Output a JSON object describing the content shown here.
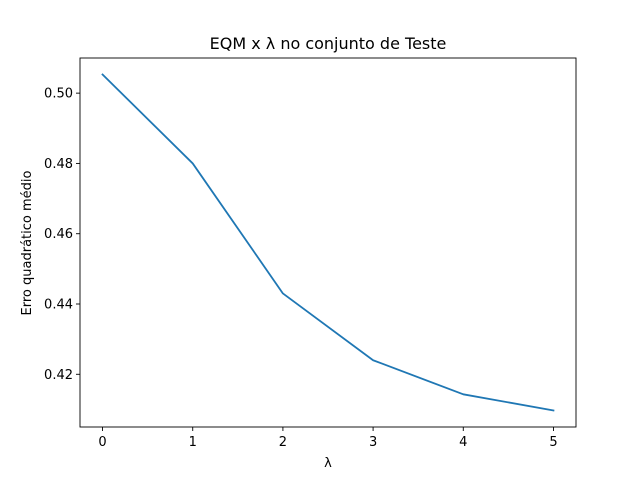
{
  "chart_data": {
    "type": "line",
    "title": "EQM x λ no conjunto de Teste",
    "xlabel": "λ",
    "ylabel": "Erro quadrático médio",
    "x": [
      0,
      1,
      2,
      3,
      4,
      5
    ],
    "series": [
      {
        "values": [
          0.5053,
          0.48,
          0.443,
          0.424,
          0.4143,
          0.4097
        ],
        "color": "#1f77b4"
      }
    ],
    "xlim": [
      -0.25,
      5.25
    ],
    "ylim": [
      0.405,
      0.51
    ],
    "xticks": [
      0,
      1,
      2,
      3,
      4,
      5
    ],
    "xtick_labels": [
      "0",
      "1",
      "2",
      "3",
      "4",
      "5"
    ],
    "yticks": [
      0.42,
      0.44,
      0.46,
      0.48,
      0.5
    ],
    "ytick_labels": [
      "0.42",
      "0.44",
      "0.46",
      "0.48",
      "0.50"
    ],
    "grid": false,
    "legend": false
  }
}
